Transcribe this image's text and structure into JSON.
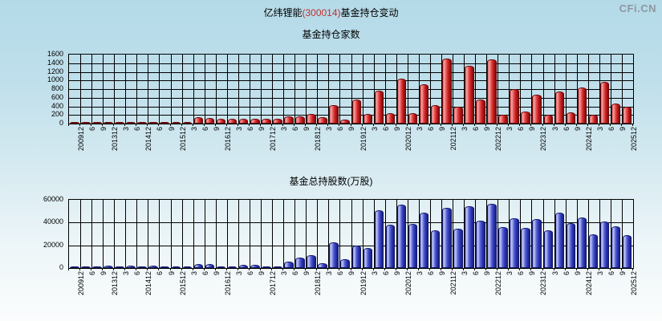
{
  "header": {
    "title_prefix": "亿纬锂能",
    "title_code": "(300014)",
    "title_suffix": "基金持仓变动",
    "logo": "CFi.CN"
  },
  "colors": {
    "background_top": "#b4dae8",
    "background_bottom": "#fbfdfd",
    "title_code_red": "#c03030",
    "logo_gray": "#8d979e",
    "red_bar": "#cc2222",
    "blue_bar": "#3340bb",
    "grid": "#000000"
  },
  "chart_data": [
    {
      "type": "bar",
      "title": "基金持仓家数",
      "xlabel": "",
      "ylabel": "",
      "ylim": [
        0,
        1600
      ],
      "ytick_interval": 200,
      "grid": "on",
      "legend": "none",
      "bar_color": "red",
      "categories": [
        "200912",
        "6",
        "9",
        "201312",
        "3",
        "6",
        "201412",
        "6",
        "9",
        "201512",
        "3",
        "6",
        "9",
        "201612",
        "3",
        "6",
        "9",
        "201712",
        "3",
        "6",
        "9",
        "201812",
        "3",
        "6",
        "9",
        "201912",
        "3",
        "6",
        "9",
        "202012",
        "3",
        "6",
        "9",
        "202112",
        "3",
        "6",
        "9",
        "202212",
        "3",
        "6",
        "9",
        "202312",
        "3",
        "6",
        "9",
        "202412",
        "3",
        "6",
        "9",
        "202512"
      ],
      "values": [
        18,
        22,
        12,
        25,
        12,
        28,
        25,
        30,
        15,
        28,
        18,
        140,
        130,
        120,
        115,
        115,
        110,
        110,
        105,
        165,
        160,
        230,
        150,
        430,
        90,
        550,
        230,
        760,
        240,
        1050,
        250,
        905,
        430,
        1500,
        385,
        1345,
        550,
        1480,
        200,
        800,
        275,
        665,
        210,
        740,
        255,
        845,
        210,
        965,
        470,
        385
      ]
    },
    {
      "type": "bar",
      "title": "基金总持股数(万股)",
      "xlabel": "",
      "ylabel": "",
      "ylim": [
        0,
        60000
      ],
      "ytick_interval": 20000,
      "grid": "on",
      "legend": "none",
      "bar_color": "blue",
      "categories": [
        "200912",
        "6",
        "9",
        "201312",
        "3",
        "6",
        "201412",
        "6",
        "9",
        "201512",
        "3",
        "6",
        "9",
        "201612",
        "3",
        "6",
        "9",
        "201712",
        "3",
        "6",
        "9",
        "201812",
        "3",
        "6",
        "9",
        "201912",
        "3",
        "6",
        "9",
        "202012",
        "3",
        "6",
        "9",
        "202112",
        "3",
        "6",
        "9",
        "202212",
        "3",
        "6",
        "9",
        "202312",
        "3",
        "6",
        "9",
        "202412",
        "3",
        "6",
        "9",
        "202512"
      ],
      "values": [
        1300,
        1400,
        1600,
        2300,
        1500,
        1800,
        1700,
        1900,
        1100,
        1500,
        900,
        3300,
        3200,
        1300,
        1200,
        3000,
        2900,
        1000,
        900,
        5900,
        8900,
        11300,
        4500,
        22400,
        7800,
        19500,
        18000,
        51000,
        38100,
        55900,
        38800,
        48600,
        32900,
        52900,
        34500,
        54500,
        41600,
        56400,
        35700,
        43500,
        35300,
        43000,
        33400,
        48900,
        39500,
        44700,
        29900,
        41100,
        36400,
        29000
      ]
    }
  ]
}
